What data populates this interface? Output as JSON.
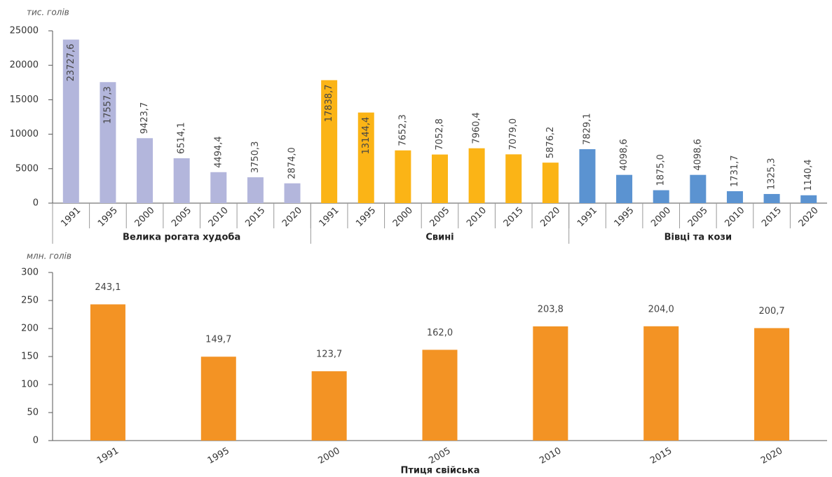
{
  "chart_data": [
    {
      "type": "bar",
      "y_label": "тис. голів",
      "ylim": [
        0,
        25000
      ],
      "yticks": [
        0,
        5000,
        10000,
        15000,
        20000,
        25000
      ],
      "groups": [
        {
          "name": "Велика рогата худоба",
          "color": "#b3b6dc",
          "categories": [
            "1991",
            "1995",
            "2000",
            "2005",
            "2010",
            "2015",
            "2020"
          ],
          "values": [
            23727.6,
            17557.3,
            9423.7,
            6514.1,
            4494.4,
            3750.3,
            2874.0
          ],
          "value_labels": [
            "23727,6",
            "17557,3",
            "9423,7",
            "6514,1",
            "4494,4",
            "3750,3",
            "2874,0"
          ]
        },
        {
          "name": "Свині",
          "color": "#fbb416",
          "categories": [
            "1991",
            "1995",
            "2000",
            "2005",
            "2010",
            "2015",
            "2020"
          ],
          "values": [
            17838.7,
            13144.4,
            7652.3,
            7052.8,
            7960.4,
            7079.0,
            5876.2
          ],
          "value_labels": [
            "17838,7",
            "13144,4",
            "7652,3",
            "7052,8",
            "7960,4",
            "7079,0",
            "5876,2"
          ]
        },
        {
          "name": "Вівці та кози",
          "color": "#5b93d1",
          "categories": [
            "1991",
            "1995",
            "2000",
            "2005",
            "2010",
            "2015",
            "2020"
          ],
          "values": [
            7829.1,
            4098.6,
            1875.0,
            4098.6,
            1731.7,
            1325.3,
            1140.4
          ],
          "value_labels": [
            "7829,1",
            "4098,6",
            "1875,0",
            "4098,6",
            "1731,7",
            "1325,3",
            "1140,4"
          ]
        }
      ]
    },
    {
      "type": "bar",
      "y_label": "млн. голів",
      "x_label": "Птиця свійська",
      "color": "#f39324",
      "ylim": [
        0,
        300
      ],
      "yticks": [
        0,
        50,
        100,
        150,
        200,
        250,
        300
      ],
      "categories": [
        "1991",
        "1995",
        "2000",
        "2005",
        "2010",
        "2015",
        "2020"
      ],
      "values": [
        243.1,
        149.7,
        123.7,
        162.0,
        203.8,
        204.0,
        200.7
      ],
      "value_labels": [
        "243,1",
        "149,7",
        "123,7",
        "162,0",
        "203,8",
        "204,0",
        "200,7"
      ]
    }
  ]
}
